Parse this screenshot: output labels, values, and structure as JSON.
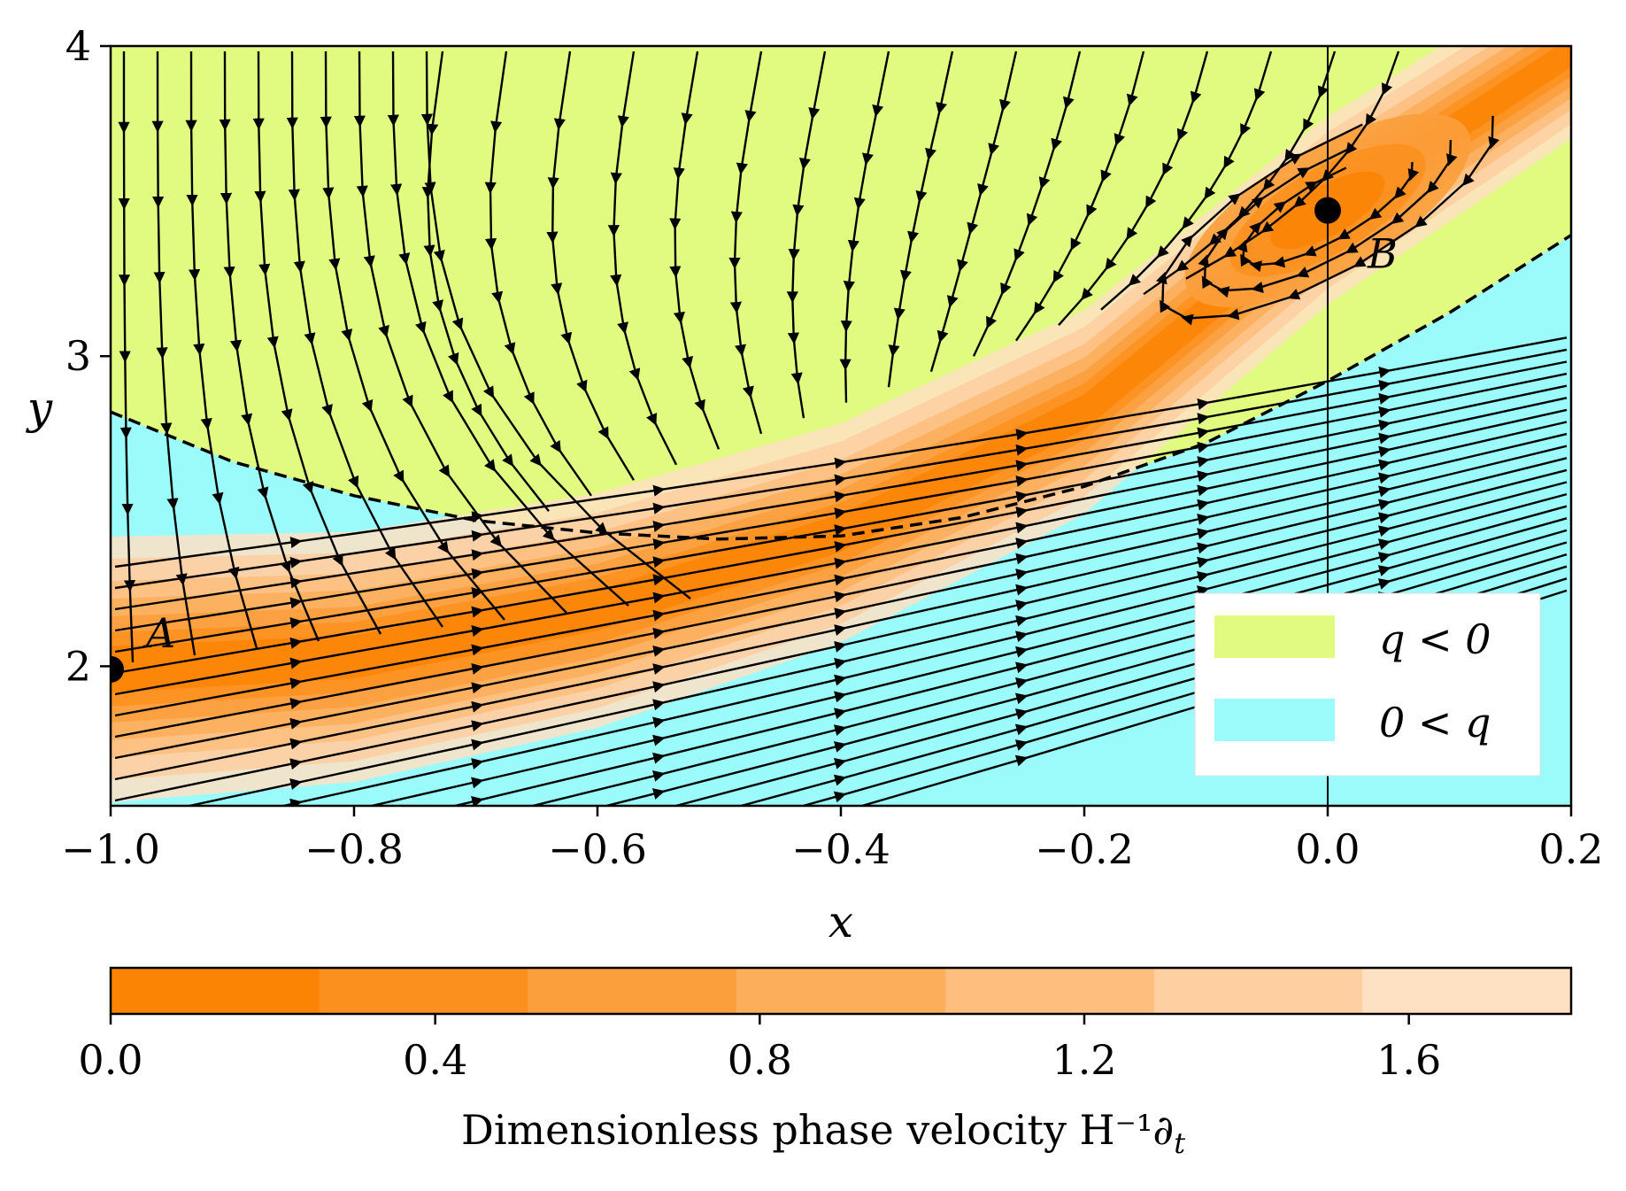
{
  "chart_data": {
    "type": "heatmap",
    "xlabel": "x",
    "ylabel": "y",
    "xlim": [
      -1.0,
      0.2
    ],
    "ylim": [
      1.55,
      4.0
    ],
    "x_ticks": [
      -1.0,
      -0.8,
      -0.6,
      -0.4,
      -0.2,
      0.0,
      0.2
    ],
    "x_tick_labels": [
      "−1.0",
      "−0.8",
      "−0.6",
      "−0.4",
      "−0.2",
      "0.0",
      "0.2"
    ],
    "y_ticks": [
      2,
      3,
      4
    ],
    "y_tick_labels": [
      "2",
      "3",
      "4"
    ],
    "grid": false,
    "regions": {
      "q_negative": {
        "label": "q < 0",
        "color": "#e0fb7f"
      },
      "q_positive": {
        "label": "0 < q",
        "color": "#9bfbfb"
      }
    },
    "legend_placement": "lower-right",
    "boundary_curve": {
      "style": "dashed",
      "x": [
        -1.0,
        -0.9,
        -0.8,
        -0.7,
        -0.6,
        -0.5,
        -0.4,
        -0.3,
        -0.2,
        -0.1,
        0.0,
        0.1,
        0.2
      ],
      "y": [
        2.82,
        2.66,
        2.55,
        2.47,
        2.43,
        2.41,
        2.42,
        2.48,
        2.58,
        2.72,
        2.92,
        3.14,
        3.39
      ]
    },
    "vertical_line_x": 0.0,
    "points": [
      {
        "label": "A",
        "x": -1.0,
        "y": 1.99
      },
      {
        "label": "B",
        "x": 0.0,
        "y": 3.47
      }
    ],
    "colorbar": {
      "label": "Dimensionless phase velocity H⁻¹∂",
      "label_subscript": "t",
      "ticks": [
        0.0,
        0.4,
        0.8,
        1.2,
        1.6
      ],
      "tick_labels": [
        "0.0",
        "0.4",
        "0.8",
        "1.2",
        "1.6"
      ],
      "range": [
        0.0,
        1.8
      ],
      "levels": [
        0.0,
        0.257,
        0.514,
        0.771,
        1.029,
        1.286,
        1.543,
        1.8
      ],
      "colors": [
        "#fb8404",
        "#fb901e",
        "#fb9f3c",
        "#fcae5b",
        "#fdbe7e",
        "#fdcfa1",
        "#fee0c3"
      ]
    }
  }
}
